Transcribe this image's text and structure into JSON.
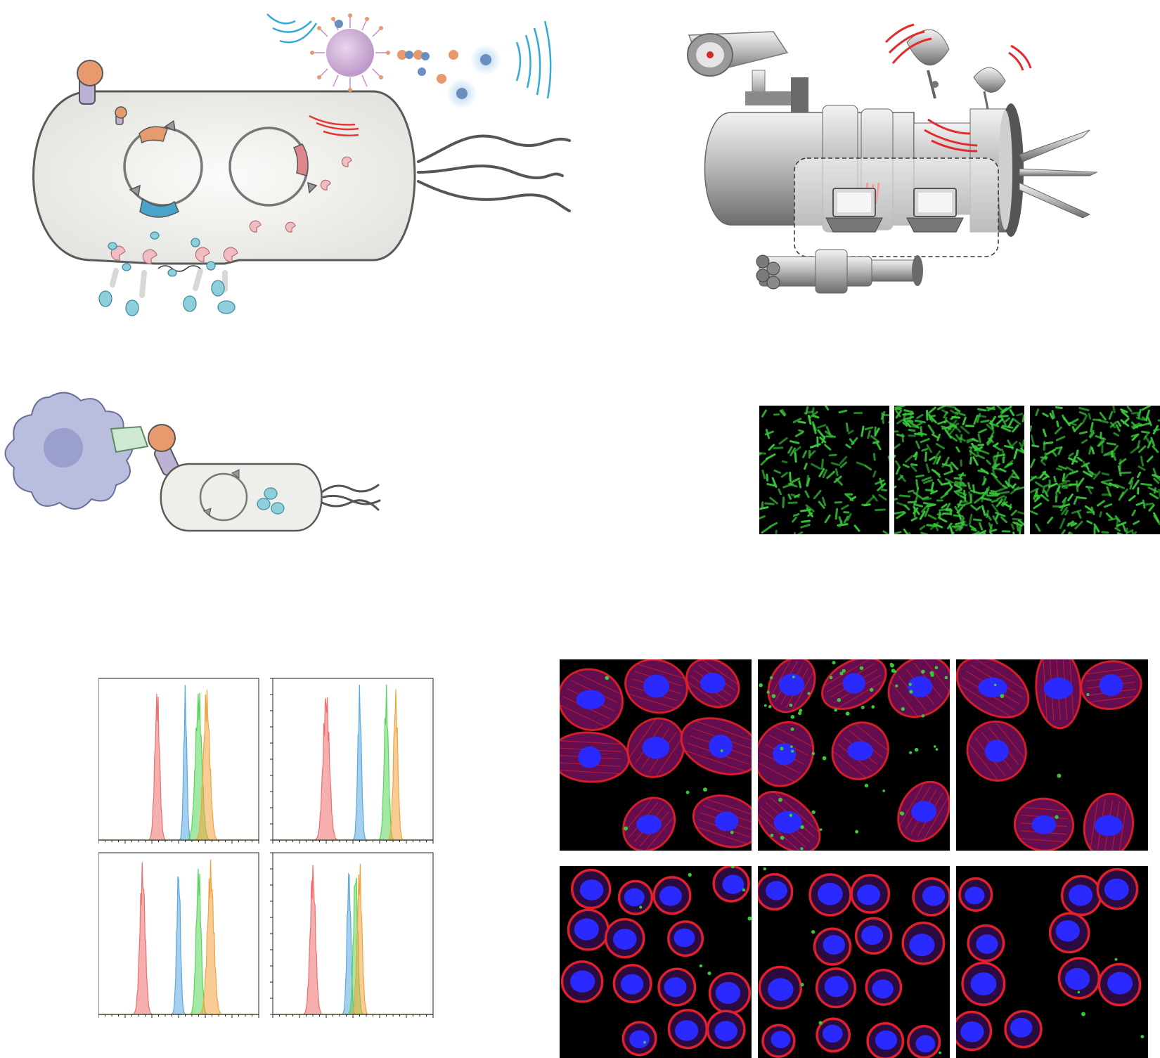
{
  "figure": {
    "panels": [
      {
        "id": "bacterium-schematic",
        "kind": "illustration",
        "icon": "bacterium-icon"
      },
      {
        "id": "spaceship-machine",
        "kind": "illustration",
        "icon": "machine-icon"
      },
      {
        "id": "macrophage-binding",
        "kind": "illustration",
        "icon": "macrophage-icon"
      },
      {
        "id": "bacteria-fluorescence",
        "kind": "micrograph-row",
        "count": 3
      },
      {
        "id": "flow-histograms",
        "kind": "chart-grid",
        "count": 4
      },
      {
        "id": "cell-confocal",
        "kind": "micrograph-grid",
        "count": 6
      }
    ]
  },
  "colors": {
    "cell_body": "#eeeeea",
    "cell_outline": "#5a5a5a",
    "macrophage": "#b9bedf",
    "nucleus": "#9b9fce",
    "orange_ball": "#e79a6d",
    "stalk": "#bdb2d6",
    "teal": "#8fcfdc",
    "pink": "#e8a6ad",
    "red_wave": "#e23a3a",
    "blue_wave": "#33a9d8",
    "bacteria_green": "#38c93a",
    "actin_red": "#e0202a",
    "dapi_blue": "#2a2aff",
    "hist_red": "#ef6e6e",
    "hist_blue": "#5aa7e0",
    "hist_green": "#58d65a",
    "hist_orange": "#f3a23e"
  },
  "chart_data": [
    {
      "type": "area",
      "series": [
        {
          "color": "red",
          "center": 2.2,
          "width": 0.09
        },
        {
          "color": "blue",
          "center": 3.25,
          "width": 0.06
        },
        {
          "color": "green",
          "center": 3.75,
          "width": 0.12
        },
        {
          "color": "orange",
          "center": 4.05,
          "width": 0.12
        }
      ],
      "xlim": [
        0,
        6
      ]
    },
    {
      "type": "area",
      "series": [
        {
          "color": "red",
          "center": 2.0,
          "width": 0.12
        },
        {
          "color": "blue",
          "center": 3.25,
          "width": 0.07
        },
        {
          "color": "green",
          "center": 4.25,
          "width": 0.08
        },
        {
          "color": "orange",
          "center": 4.6,
          "width": 0.08
        }
      ],
      "xlim": [
        0,
        6
      ]
    },
    {
      "type": "area",
      "series": [
        {
          "color": "red",
          "center": 1.65,
          "width": 0.1
        },
        {
          "color": "blue",
          "center": 3.0,
          "width": 0.07
        },
        {
          "color": "green",
          "center": 3.75,
          "width": 0.09
        },
        {
          "color": "orange",
          "center": 4.2,
          "width": 0.12
        }
      ],
      "xlim": [
        0,
        6
      ]
    },
    {
      "type": "area",
      "series": [
        {
          "color": "red",
          "center": 1.5,
          "width": 0.1
        },
        {
          "color": "blue",
          "center": 2.85,
          "width": 0.07
        },
        {
          "color": "green",
          "center": 3.1,
          "width": 0.08
        },
        {
          "color": "orange",
          "center": 3.25,
          "width": 0.09
        }
      ],
      "xlim": [
        0,
        6
      ]
    }
  ]
}
